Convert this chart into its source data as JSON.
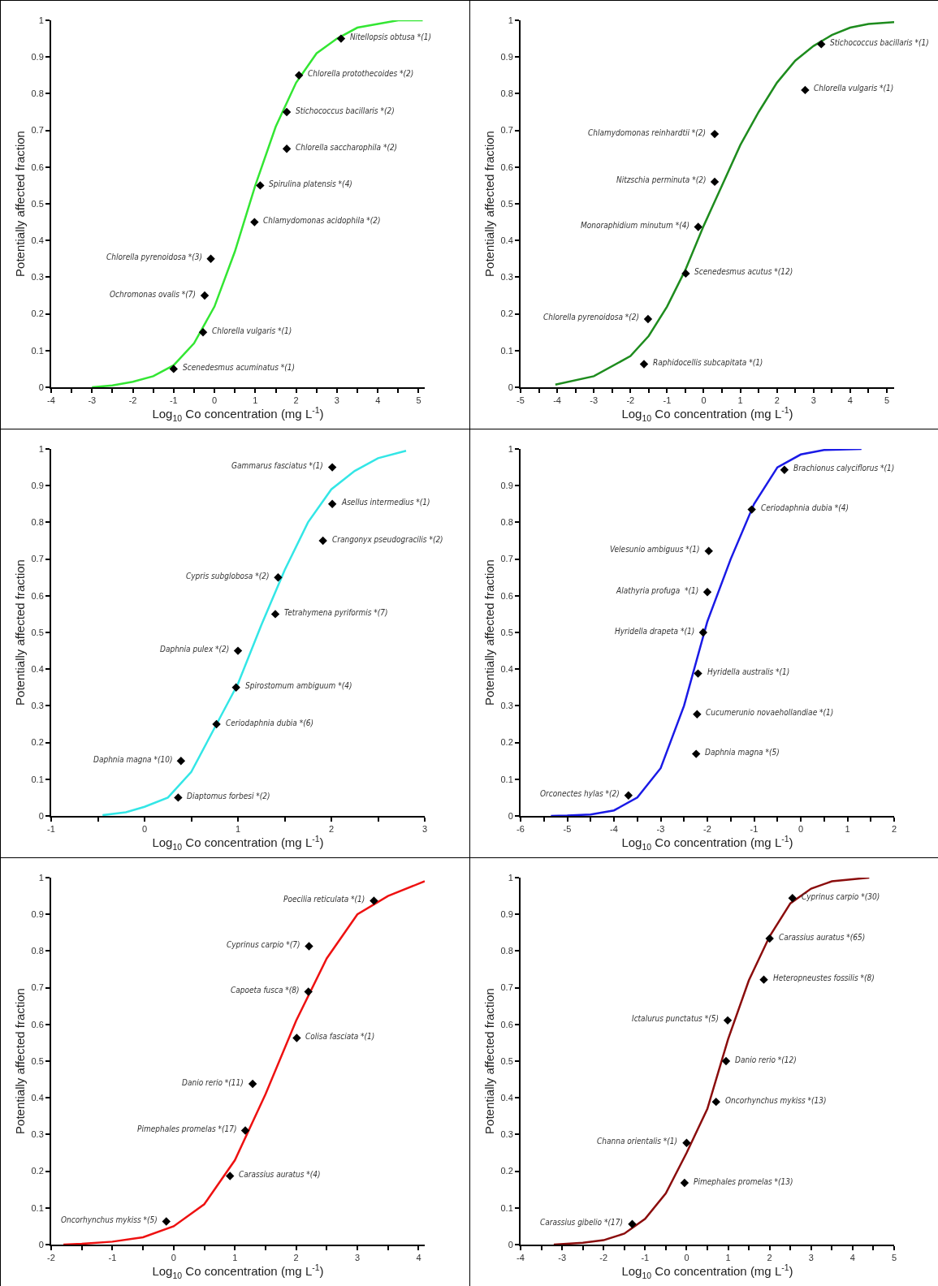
{
  "chart_data": [
    {
      "type": "scatter",
      "xlabel": "Log$_{10}$ Co concentration (mg L$^{-1}$)",
      "ylabel": "Potentially affected fraction",
      "xlim": [
        -4,
        5.15
      ],
      "xticks": [
        -4,
        {
          "value": -3.5,
          "label": null
        },
        -3,
        {
          "value": -2.5,
          "label": null
        },
        -2,
        {
          "value": -1.5,
          "label": null
        },
        -1,
        {
          "value": -0.5,
          "label": null
        },
        0,
        {
          "value": 0.5,
          "label": null
        },
        1,
        {
          "value": 1.5,
          "label": null
        },
        2,
        {
          "value": 2.5,
          "label": null
        },
        3,
        {
          "value": 3.5,
          "label": null
        },
        4,
        {
          "value": 4.5,
          "label": null
        },
        5
      ],
      "ylim": [
        0,
        1
      ],
      "yticks": [
        0,
        0.1,
        0.2,
        0.3,
        0.4,
        0.5,
        0.6,
        0.7,
        0.8,
        0.9,
        1
      ],
      "series": [
        {
          "type": "line",
          "color": "#33e633",
          "marker": "none",
          "x": [
            -3,
            -2.5,
            -2,
            -1.5,
            -1,
            -0.5,
            0,
            0.5,
            1,
            1.5,
            2,
            2.5,
            3,
            3.5,
            4,
            4.5,
            5.1
          ],
          "values": [
            0,
            0.005,
            0.015,
            0.03,
            0.06,
            0.12,
            0.22,
            0.37,
            0.55,
            0.71,
            0.83,
            0.91,
            0.95,
            0.98,
            0.99,
            1,
            1
          ]
        },
        {
          "color": "#000000",
          "marker": "diamond",
          "x": [
            3.1,
            2.07,
            1.77,
            1.77,
            1.12,
            0.98,
            -0.09,
            -0.24,
            -0.28,
            -1.0
          ],
          "values": [
            0.95,
            0.85,
            0.75,
            0.65,
            0.55,
            0.45,
            0.35,
            0.25,
            0.15,
            0.05
          ]
        }
      ],
      "annotations": [
        {
          "text": "Nitellopsis obtusa *(1)",
          "x": 3.1,
          "y": 0.95
        },
        {
          "text": "Chlorella protothecoides *(2)",
          "x": 2.07,
          "y": 0.85
        },
        {
          "text": "Stichococcus bacillaris *(2)",
          "x": 1.77,
          "y": 0.75
        },
        {
          "text": "Chlorella saccharophila *(2)",
          "x": 1.77,
          "y": 0.65
        },
        {
          "text": "Spirulina platensis *(4)",
          "x": 1.12,
          "y": 0.55
        },
        {
          "text": "Chlamydomonas acidophila *(2)",
          "x": 0.98,
          "y": 0.45
        },
        {
          "text": "Chlorella pyrenoidosa *(3)",
          "x": -0.09,
          "y": 0.35
        },
        {
          "text": "Ochromonas ovalis *(7)",
          "x": -0.24,
          "y": 0.25
        },
        {
          "text": "Chlorella vulgaris *(1)",
          "x": -0.28,
          "y": 0.15
        },
        {
          "text": "Scenedesmus acuminatus *(1)",
          "x": -1.0,
          "y": 0.05
        }
      ]
    },
    {
      "type": "scatter",
      "xlabel": "Log$_{10}$ Co concentration (mg L$^{-1}$)",
      "ylabel": "Potentially affected fraction",
      "xlim": [
        -5,
        5.2
      ],
      "xticks": [
        -5,
        {
          "value": -4.5,
          "label": null
        },
        -4,
        {
          "value": -3.5,
          "label": null
        },
        -3,
        {
          "value": -2.5,
          "label": null
        },
        -2,
        {
          "value": -1.5,
          "label": null
        },
        -1,
        {
          "value": -0.5,
          "label": null
        },
        0,
        {
          "value": 0.5,
          "label": null
        },
        1,
        {
          "value": 1.5,
          "label": null
        },
        2,
        {
          "value": 2.5,
          "label": null
        },
        3,
        {
          "value": 3.5,
          "label": null
        },
        4,
        {
          "value": 4.5,
          "label": null
        },
        5
      ],
      "ylim": [
        0,
        1
      ],
      "yticks": [
        0,
        0.1,
        0.2,
        0.3,
        0.4,
        0.5,
        0.6,
        0.7,
        0.8,
        0.9,
        1
      ],
      "series": [
        {
          "type": "line",
          "color": "#1e8c1e",
          "marker": "none",
          "x": [
            -4.05,
            -3,
            -2,
            -1.5,
            -1,
            -0.5,
            0,
            0.5,
            1,
            1.5,
            2,
            2.5,
            3,
            3.5,
            4,
            4.5,
            5.2
          ],
          "values": [
            0.007,
            0.03,
            0.085,
            0.14,
            0.22,
            0.32,
            0.44,
            0.55,
            0.66,
            0.75,
            0.83,
            0.89,
            0.93,
            0.96,
            0.98,
            0.99,
            0.995
          ]
        },
        {
          "color": "#000000",
          "marker": "diamond",
          "x": [
            3.21,
            2.77,
            0.3,
            0.3,
            -0.15,
            -0.49,
            -1.52,
            -1.63
          ],
          "values": [
            0.935,
            0.81,
            0.69,
            0.56,
            0.437,
            0.31,
            0.186,
            0.063
          ]
        }
      ],
      "annotations": [
        {
          "text": "Stichococcus bacillaris *(1)",
          "x": 3.21,
          "y": 0.935
        },
        {
          "text": "Chlorella vulgaris *(1)",
          "x": 2.77,
          "y": 0.81
        },
        {
          "text": "Chlamydomonas reinhardtii *(2)",
          "x": 0.3,
          "y": 0.69
        },
        {
          "text": "Nitzschia perminuta *(2)",
          "x": 0.3,
          "y": 0.56
        },
        {
          "text": "Monoraphidium minutum *(4)",
          "x": -0.15,
          "y": 0.437
        },
        {
          "text": "Scenedesmus acutus *(12)",
          "x": -0.49,
          "y": 0.31
        },
        {
          "text": "Chlorella pyrenoidosa *(2)",
          "x": -1.52,
          "y": 0.186
        },
        {
          "text": "Raphidocellis subcapitata *(1)",
          "x": -1.63,
          "y": 0.063
        }
      ]
    },
    {
      "type": "scatter",
      "xlabel": "Log$_{10}$ Co concentration (mg L$^{-1}$)",
      "ylabel": "Potentially affected fraction",
      "xlim": [
        -1,
        3
      ],
      "xticks": [
        -1,
        {
          "value": -0.5,
          "label": null
        },
        0,
        {
          "value": 0.5,
          "label": null
        },
        1,
        {
          "value": 1.5,
          "label": null
        },
        2,
        {
          "value": 2.5,
          "label": null
        },
        3
      ],
      "ylim": [
        0,
        1
      ],
      "yticks": [
        0,
        0.1,
        0.2,
        0.3,
        0.4,
        0.5,
        0.6,
        0.7,
        0.8,
        0.9,
        1
      ],
      "series": [
        {
          "type": "line",
          "color": "#33e6e6",
          "marker": "none",
          "x": [
            -0.45,
            -0.2,
            0,
            0.25,
            0.5,
            0.75,
            1,
            1.25,
            1.5,
            1.75,
            2,
            2.25,
            2.5,
            2.8
          ],
          "values": [
            0.002,
            0.01,
            0.025,
            0.05,
            0.12,
            0.24,
            0.36,
            0.52,
            0.67,
            0.8,
            0.89,
            0.94,
            0.975,
            0.995
          ]
        },
        {
          "color": "#000000",
          "marker": "diamond",
          "x": [
            2.01,
            2.01,
            1.91,
            1.43,
            1.4,
            1.0,
            0.98,
            0.77,
            0.39,
            0.36
          ],
          "values": [
            0.95,
            0.85,
            0.75,
            0.65,
            0.55,
            0.45,
            0.35,
            0.25,
            0.15,
            0.05
          ]
        }
      ],
      "annotations": [
        {
          "text": "Gammarus fasciatus *(1)",
          "x": 2.01,
          "y": 0.95
        },
        {
          "text": "Asellus intermedius *(1)",
          "x": 2.01,
          "y": 0.85
        },
        {
          "text": "Crangonyx pseudogracilis *(2)",
          "x": 1.91,
          "y": 0.75
        },
        {
          "text": "Cypris subglobosa *(2)",
          "x": 1.43,
          "y": 0.65
        },
        {
          "text": "Tetrahymena pyriformis *(7)",
          "x": 1.4,
          "y": 0.55
        },
        {
          "text": "Daphnia pulex *(2)",
          "x": 1.0,
          "y": 0.45
        },
        {
          "text": "Spirostomum ambiguum *(4)",
          "x": 0.98,
          "y": 0.35
        },
        {
          "text": "Ceriodaphnia dubia *(6)",
          "x": 0.77,
          "y": 0.25
        },
        {
          "text": "Daphnia magna *(10)",
          "x": 0.39,
          "y": 0.15
        },
        {
          "text": "Diaptomus forbesi *(2)",
          "x": 0.36,
          "y": 0.05
        }
      ]
    },
    {
      "type": "scatter",
      "xlabel": "Log$_{10}$ Co concentration (mg L$^{-1}$)",
      "ylabel": "Potentially affected fraction",
      "xlim": [
        -6,
        2
      ],
      "xticks": [
        -6,
        {
          "value": -5.5,
          "label": null
        },
        -5,
        {
          "value": -4.5,
          "label": null
        },
        -4,
        {
          "value": -3.5,
          "label": null
        },
        -3,
        {
          "value": -2.5,
          "label": null
        },
        -2,
        {
          "value": -1.5,
          "label": null
        },
        -1,
        {
          "value": -0.5,
          "label": null
        },
        0,
        {
          "value": 0.5,
          "label": null
        },
        1,
        {
          "value": 1.5,
          "label": null
        },
        2
      ],
      "ylim": [
        0,
        1
      ],
      "yticks": [
        0,
        0.1,
        0.2,
        0.3,
        0.4,
        0.5,
        0.6,
        0.7,
        0.8,
        0.9,
        1
      ],
      "series": [
        {
          "type": "line",
          "color": "#1a1ae6",
          "marker": "none",
          "x": [
            -5.35,
            -5,
            -4.5,
            -4,
            -3.5,
            -3,
            -2.5,
            -2,
            -1.5,
            -1,
            -0.5,
            0,
            0.5,
            1.3
          ],
          "values": [
            0,
            0.001,
            0.004,
            0.015,
            0.05,
            0.13,
            0.3,
            0.53,
            0.7,
            0.85,
            0.95,
            0.985,
            0.997,
            1
          ]
        },
        {
          "color": "#000000",
          "marker": "diamond",
          "x": [
            -0.35,
            -1.05,
            -1.97,
            -2.0,
            -2.09,
            -2.2,
            -2.22,
            -2.24,
            -3.69
          ],
          "values": [
            0.943,
            0.835,
            0.722,
            0.61,
            0.5,
            0.388,
            0.277,
            0.169,
            0.056
          ]
        }
      ],
      "annotations": [
        {
          "text": "Brachionus calyciflorus *(1)",
          "x": -0.35,
          "y": 0.943
        },
        {
          "text": "Ceriodaphnia dubia *(4)",
          "x": -1.05,
          "y": 0.835
        },
        {
          "text": "Velesunio ambiguus *(1)",
          "x": -1.97,
          "y": 0.722
        },
        {
          "text": "Alathyria profuga  *(1)",
          "x": -2.0,
          "y": 0.61
        },
        {
          "text": "Hyridella drapeta *(1)",
          "x": -2.09,
          "y": 0.5
        },
        {
          "text": "Hyridella australis *(1)",
          "x": -2.2,
          "y": 0.388
        },
        {
          "text": "Cucumerunio novaehollandiae *(1)",
          "x": -2.22,
          "y": 0.277
        },
        {
          "text": "Daphnia magna *(5)",
          "x": -2.24,
          "y": 0.169
        },
        {
          "text": "Orconectes hylas *(2)",
          "x": -3.69,
          "y": 0.056
        }
      ]
    },
    {
      "type": "scatter",
      "xlabel": "Log$_{10}$ Co concentration (mg L$^{-1}$)",
      "ylabel": "Potentially affected fraction",
      "xlim": [
        -2,
        4.1
      ],
      "xticks": [
        -2,
        {
          "value": -1.5,
          "label": null
        },
        -1,
        {
          "value": -0.5,
          "label": null
        },
        0,
        {
          "value": 0.5,
          "label": null
        },
        1,
        {
          "value": 1.5,
          "label": null
        },
        2,
        {
          "value": 2.5,
          "label": null
        },
        3,
        {
          "value": 3.5,
          "label": null
        },
        4
      ],
      "ylim": [
        0,
        1
      ],
      "yticks": [
        0,
        0.1,
        0.2,
        0.3,
        0.4,
        0.5,
        0.6,
        0.7,
        0.8,
        0.9,
        1
      ],
      "series": [
        {
          "type": "line",
          "color": "#ee1111",
          "marker": "none",
          "x": [
            -1.8,
            -1.5,
            -1,
            -0.5,
            0,
            0.5,
            1,
            1.5,
            2,
            2.5,
            3,
            3.5,
            4.1
          ],
          "values": [
            0,
            0.002,
            0.008,
            0.02,
            0.05,
            0.11,
            0.23,
            0.41,
            0.61,
            0.78,
            0.9,
            0.95,
            0.99
          ]
        },
        {
          "color": "#000000",
          "marker": "diamond",
          "x": [
            3.27,
            2.21,
            2.2,
            2.01,
            1.29,
            1.17,
            0.92,
            -0.12
          ],
          "values": [
            0.937,
            0.813,
            0.689,
            0.563,
            0.438,
            0.311,
            0.187,
            0.063
          ]
        }
      ],
      "annotations": [
        {
          "text": "Poecilia reticulata *(1)",
          "x": 3.27,
          "y": 0.937
        },
        {
          "text": "Cyprinus carpio *(7)",
          "x": 2.21,
          "y": 0.813
        },
        {
          "text": "Capoeta fusca *(8)",
          "x": 2.2,
          "y": 0.689
        },
        {
          "text": "Colisa fasciata *(1)",
          "x": 2.01,
          "y": 0.563
        },
        {
          "text": "Danio rerio *(11)",
          "x": 1.29,
          "y": 0.438
        },
        {
          "text": "Pimephales promelas *(17)",
          "x": 1.17,
          "y": 0.311
        },
        {
          "text": "Carassius auratus *(4)",
          "x": 0.92,
          "y": 0.187
        },
        {
          "text": "Oncorhynchus mykiss *(5)",
          "x": -0.12,
          "y": 0.063
        }
      ]
    },
    {
      "type": "scatter",
      "xlabel": "Log$_{10}$ Co concentration (mg L$^{-1}$)",
      "ylabel": "Potentially affected fraction",
      "xlim": [
        -4,
        5
      ],
      "xticks": [
        -4,
        {
          "value": -3.5,
          "label": null
        },
        -3,
        {
          "value": -2.5,
          "label": null
        },
        -2,
        {
          "value": -1.5,
          "label": null
        },
        -1,
        {
          "value": -0.5,
          "label": null
        },
        0,
        {
          "value": 0.5,
          "label": null
        },
        1,
        {
          "value": 1.5,
          "label": null
        },
        2,
        {
          "value": 2.5,
          "label": null
        },
        3,
        {
          "value": 3.5,
          "label": null
        },
        4,
        {
          "value": 4.5,
          "label": null
        },
        5
      ],
      "ylim": [
        0,
        1
      ],
      "yticks": [
        0,
        0.1,
        0.2,
        0.3,
        0.4,
        0.5,
        0.6,
        0.7,
        0.8,
        0.9,
        1
      ],
      "series": [
        {
          "type": "line",
          "color": "#8b0d0d",
          "marker": "none",
          "x": [
            -3.2,
            -2.5,
            -2,
            -1.5,
            -1,
            -0.5,
            0,
            0.5,
            1,
            1.5,
            2,
            2.5,
            3,
            3.5,
            4.4
          ],
          "values": [
            0,
            0.005,
            0.012,
            0.03,
            0.07,
            0.14,
            0.25,
            0.37,
            0.56,
            0.72,
            0.84,
            0.93,
            0.97,
            0.99,
            1
          ]
        },
        {
          "color": "#000000",
          "marker": "diamond",
          "x": [
            2.55,
            2.0,
            1.86,
            0.99,
            0.95,
            0.71,
            0.0,
            -0.05,
            -1.31
          ],
          "values": [
            0.944,
            0.834,
            0.722,
            0.611,
            0.5,
            0.389,
            0.277,
            0.168,
            0.056
          ]
        }
      ],
      "annotations": [
        {
          "text": "Cyprinus carpio *(30)",
          "x": 2.55,
          "y": 0.944
        },
        {
          "text": "Carassius auratus *(65)",
          "x": 2.0,
          "y": 0.834
        },
        {
          "text": "Heteropneustes fossilis *(8)",
          "x": 1.86,
          "y": 0.722
        },
        {
          "text": "Ictalurus punctatus *(5)",
          "x": 0.99,
          "y": 0.611
        },
        {
          "text": "Danio rerio *(12)",
          "x": 0.95,
          "y": 0.5
        },
        {
          "text": "Oncorhynchus mykiss *(13)",
          "x": 0.71,
          "y": 0.389
        },
        {
          "text": "Channa orientalis *(1)",
          "x": 0.0,
          "y": 0.277
        },
        {
          "text": "Pimephales promelas *(13)",
          "x": -0.05,
          "y": 0.168
        },
        {
          "text": "Carassius gibelio *(17)",
          "x": -1.31,
          "y": 0.056
        }
      ]
    }
  ]
}
